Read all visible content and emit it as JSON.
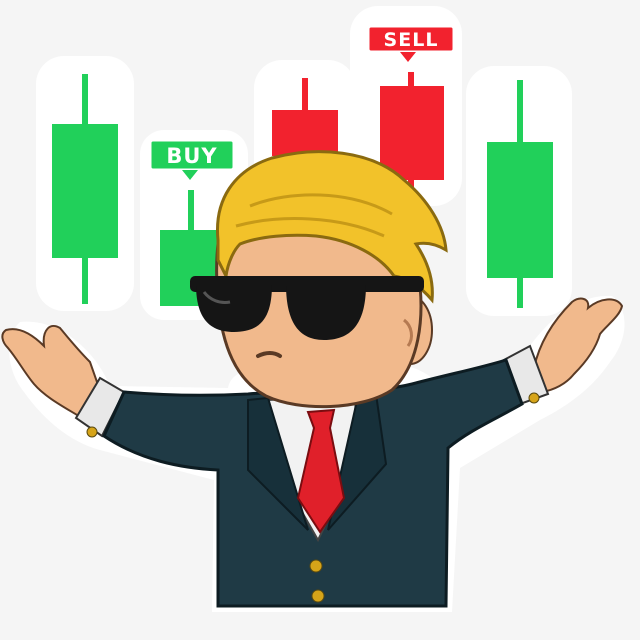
{
  "sticker": {
    "buy_label": "BUY",
    "sell_label": "SELL"
  },
  "colors": {
    "background": "#f5f5f5",
    "sticker_outline": "#ffffff",
    "candle_green": "#21d05a",
    "candle_red": "#f2222e",
    "suit": "#1f3a45",
    "tie": "#e0202a",
    "hair": "#f2c22a",
    "skin": "#f1b98c",
    "glasses": "#151515"
  },
  "icons": {
    "candles": "candlestick-chart-icon",
    "character": "mascot-in-suit-icon"
  }
}
